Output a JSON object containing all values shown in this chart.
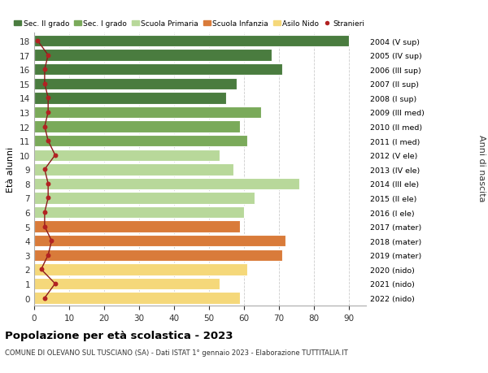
{
  "ages": [
    18,
    17,
    16,
    15,
    14,
    13,
    12,
    11,
    10,
    9,
    8,
    7,
    6,
    5,
    4,
    3,
    2,
    1,
    0
  ],
  "bar_values": [
    90,
    68,
    71,
    58,
    55,
    65,
    59,
    61,
    53,
    57,
    76,
    63,
    60,
    59,
    72,
    71,
    61,
    53,
    59
  ],
  "stranieri_values": [
    1,
    4,
    3,
    3,
    4,
    4,
    3,
    4,
    6,
    3,
    4,
    4,
    3,
    3,
    5,
    4,
    2,
    6,
    3
  ],
  "right_labels": [
    "2004 (V sup)",
    "2005 (IV sup)",
    "2006 (III sup)",
    "2007 (II sup)",
    "2008 (I sup)",
    "2009 (III med)",
    "2010 (II med)",
    "2011 (I med)",
    "2012 (V ele)",
    "2013 (IV ele)",
    "2014 (III ele)",
    "2015 (II ele)",
    "2016 (I ele)",
    "2017 (mater)",
    "2018 (mater)",
    "2019 (mater)",
    "2020 (nido)",
    "2021 (nido)",
    "2022 (nido)"
  ],
  "bar_colors": [
    "#4a7c3f",
    "#4a7c3f",
    "#4a7c3f",
    "#4a7c3f",
    "#4a7c3f",
    "#7aaa5a",
    "#7aaa5a",
    "#7aaa5a",
    "#b8d89a",
    "#b8d89a",
    "#b8d89a",
    "#b8d89a",
    "#b8d89a",
    "#d97b3a",
    "#d97b3a",
    "#d97b3a",
    "#f5d87a",
    "#f5d87a",
    "#f5d87a"
  ],
  "legend_labels": [
    "Sec. II grado",
    "Sec. I grado",
    "Scuola Primaria",
    "Scuola Infanzia",
    "Asilo Nido",
    "Stranieri"
  ],
  "legend_colors": [
    "#4a7c3f",
    "#7aaa5a",
    "#b8d89a",
    "#d97b3a",
    "#f5d87a",
    "#b22222"
  ],
  "ylabel_left": "Età alunni",
  "ylabel_right": "Anni di nascita",
  "title": "Popolazione per età scolastica - 2023",
  "subtitle": "COMUNE DI OLEVANO SUL TUSCIANO (SA) - Dati ISTAT 1° gennaio 2023 - Elaborazione TUTTITALIA.IT",
  "xlim": [
    0,
    95
  ],
  "xticks": [
    0,
    10,
    20,
    30,
    40,
    50,
    60,
    70,
    80,
    90
  ],
  "background_color": "#ffffff",
  "grid_color": "#cccccc",
  "stranieri_color": "#b22222",
  "stranieri_line_color": "#8b1a1a"
}
